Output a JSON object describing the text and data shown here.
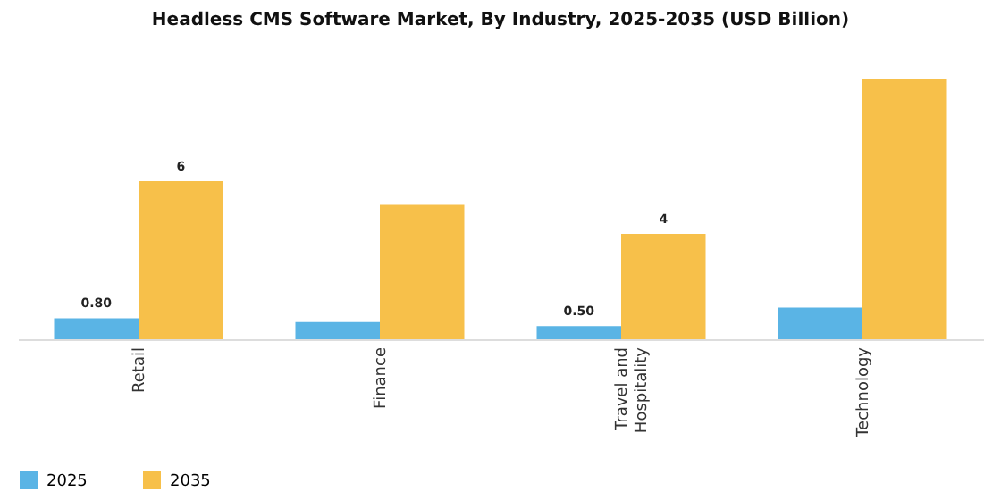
{
  "chart_data": {
    "type": "bar",
    "title": "Headless CMS Software Market, By Industry, 2025-2035 (USD Billion)",
    "categories": [
      "Retail",
      "Finance",
      "Travel and Hospitality",
      "Technology"
    ],
    "series": [
      {
        "name": "2025",
        "color": "#5ab4e5",
        "values": [
          0.8,
          0.65,
          0.5,
          1.2
        ],
        "value_labels": [
          "0.80",
          null,
          "0.50",
          null
        ]
      },
      {
        "name": "2035",
        "color": "#f7c04a",
        "values": [
          6,
          5.1,
          4,
          9.9
        ],
        "value_labels": [
          "6",
          null,
          "4",
          null
        ]
      }
    ],
    "legend": "bottom",
    "grid": false
  }
}
